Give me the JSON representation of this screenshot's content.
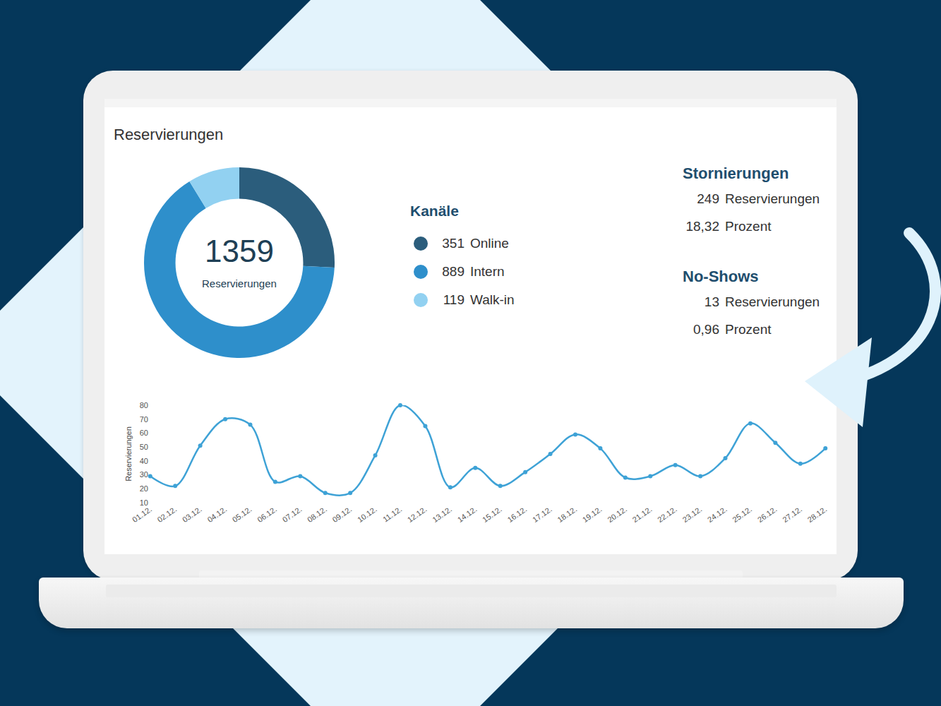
{
  "title": "Reservierungen",
  "chart_data": [
    {
      "type": "pie",
      "categories": [
        "Online",
        "Intern",
        "Walk-in"
      ],
      "values": [
        351,
        889,
        119
      ],
      "colors": [
        "#2b5d7c",
        "#2e8fcb",
        "#92d1f1"
      ],
      "legend": "right",
      "legend_title": "Kanäle",
      "total": 1359,
      "total_label": "Reservierungen"
    },
    {
      "type": "line",
      "y_label": "Reservierungen",
      "categories": [
        "01.12.",
        "02.12.",
        "03.12.",
        "04.12.",
        "05.12.",
        "06.12.",
        "07.12.",
        "08.12.",
        "09.12.",
        "10.12.",
        "11.12.",
        "12.12.",
        "13.12.",
        "14.12.",
        "15.12.",
        "16.12.",
        "17.12.",
        "18.12.",
        "19.12.",
        "20.12.",
        "21.12.",
        "22.12.",
        "23.12.",
        "24.12.",
        "25.12.",
        "26.12.",
        "27.12.",
        "28.12."
      ],
      "values": [
        29,
        22,
        51,
        70,
        66,
        25,
        29,
        17,
        17,
        44,
        80,
        65,
        21,
        35,
        22,
        32,
        45,
        59,
        49,
        28,
        29,
        37,
        29,
        42,
        67,
        53,
        38,
        49
      ],
      "color": "#3ea2d6",
      "marker": "circle",
      "ylim": [
        10,
        80
      ],
      "yticks": [
        10,
        20,
        30,
        40,
        50,
        60,
        70,
        80
      ],
      "grid": false
    }
  ],
  "stats": [
    {
      "title": "Stornierungen",
      "rows": [
        {
          "value": "249",
          "label": "Reservierungen"
        },
        {
          "value": "18,32",
          "label": "Prozent"
        }
      ]
    },
    {
      "title": "No-Shows",
      "rows": [
        {
          "value": "13",
          "label": "Reservierungen"
        },
        {
          "value": "0,96",
          "label": "Prozent"
        }
      ]
    }
  ]
}
